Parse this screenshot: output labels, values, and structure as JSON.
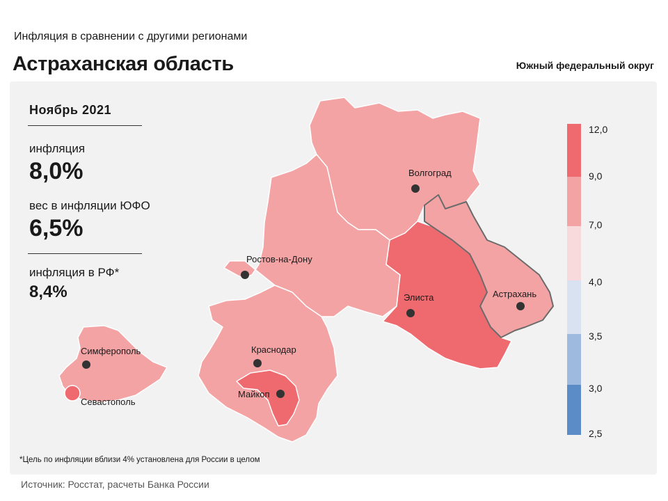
{
  "header": {
    "subtitle": "Инфляция в сравнении с другими регионами",
    "title": "Астраханская область",
    "district": "Южный федеральный округ"
  },
  "stats": {
    "month": "Ноябрь 2021",
    "inflation_label": "инфляция",
    "inflation_value": "8,0%",
    "weight_label": "вес в инфляции ЮФО",
    "weight_value": "6,5%",
    "rf_label": "инфляция в РФ*",
    "rf_value": "8,4%"
  },
  "map": {
    "cities": [
      {
        "name": "Волгоград"
      },
      {
        "name": "Ростов-на-Дону"
      },
      {
        "name": "Элиста"
      },
      {
        "name": "Астрахань"
      },
      {
        "name": "Симферополь"
      },
      {
        "name": "Краснодар"
      },
      {
        "name": "Майкоп"
      },
      {
        "name": "Севастополь"
      }
    ],
    "regions": [
      {
        "region": "Волгоградская область",
        "inflation_class": "7,0–9,0",
        "color": "#f4a3a5"
      },
      {
        "region": "Ростовская область",
        "inflation_class": "7,0–9,0",
        "color": "#f4a3a5"
      },
      {
        "region": "Калмыкия",
        "inflation_class": "9,0–12,0",
        "color": "#ef6a6f"
      },
      {
        "region": "Астраханская область",
        "inflation_class": "7,0–9,0",
        "color": "#f4a3a5"
      },
      {
        "region": "Краснодарский край",
        "inflation_class": "7,0–9,0",
        "color": "#f4a3a5"
      },
      {
        "region": "Адыгея",
        "inflation_class": "9,0–12,0",
        "color": "#ef6a6f"
      },
      {
        "region": "Крым",
        "inflation_class": "7,0–9,0",
        "color": "#f4a3a5"
      },
      {
        "region": "Севастополь",
        "inflation_class": "9,0–12,0",
        "color": "#ef6a6f"
      }
    ]
  },
  "legend": {
    "ticks": [
      "12,0",
      "9,0",
      "7,0",
      "4,0",
      "3,5",
      "3,0",
      "2,5"
    ],
    "colors": [
      "#ef6a6f",
      "#f4a3a5",
      "#f8dadc",
      "#d8e2f0",
      "#9fbadf",
      "#5b8cc8"
    ]
  },
  "footnote": "*Цель по инфляции вблизи 4% установлена для России в целом",
  "source": "Источник: Росстат, расчеты Банка России"
}
